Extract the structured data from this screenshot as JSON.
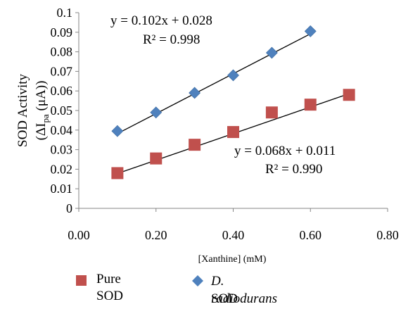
{
  "chart_data": {
    "type": "scatter",
    "title": "",
    "xlabel": "[Xanthine] (mM)",
    "ylabel": {
      "line1": "SOD Activity",
      "line2_prefix": "(ΔI",
      "line2_sub": "pa",
      "line2_suffix": " (μA))"
    },
    "xlim": [
      0,
      0.8
    ],
    "ylim": [
      0,
      0.1
    ],
    "x_ticks": [
      "0.00",
      "0.20",
      "0.40",
      "0.60",
      "0.80"
    ],
    "x_tick_values": [
      0,
      0.2,
      0.4,
      0.6,
      0.8
    ],
    "y_ticks": [
      "0",
      "0.01",
      "0.02",
      "0.03",
      "0.04",
      "0.05",
      "0.06",
      "0.07",
      "0.08",
      "0.09",
      "0.1"
    ],
    "y_tick_values": [
      0,
      0.01,
      0.02,
      0.03,
      0.04,
      0.05,
      0.06,
      0.07,
      0.08,
      0.09,
      0.1
    ],
    "grid": false,
    "legend_position": "bottom",
    "series": [
      {
        "name": "Pure SOD",
        "marker": "square",
        "color": "#c0504d",
        "x": [
          0.1,
          0.2,
          0.3,
          0.4,
          0.5,
          0.6,
          0.7
        ],
        "y": [
          0.018,
          0.0255,
          0.0325,
          0.039,
          0.049,
          0.053,
          0.058
        ],
        "trendline": {
          "slope": 0.068,
          "intercept": 0.011
        },
        "equation": "y = 0.068x + 0.011",
        "r2": "R² = 0.990"
      },
      {
        "name": "D. radiodurans SOD",
        "marker": "diamond",
        "color": "#4f81bd",
        "x": [
          0.1,
          0.2,
          0.3,
          0.4,
          0.5,
          0.6
        ],
        "y": [
          0.0395,
          0.049,
          0.059,
          0.068,
          0.0795,
          0.0905
        ],
        "trendline": {
          "slope": 0.102,
          "intercept": 0.028
        },
        "equation": "y = 0.102x + 0.028",
        "r2": "R² = 0.998"
      }
    ]
  },
  "legend": {
    "pure_line1": "Pure",
    "pure_line2": "SOD",
    "dr_line1": "D. radiodurans",
    "dr_line2": "SOD"
  }
}
